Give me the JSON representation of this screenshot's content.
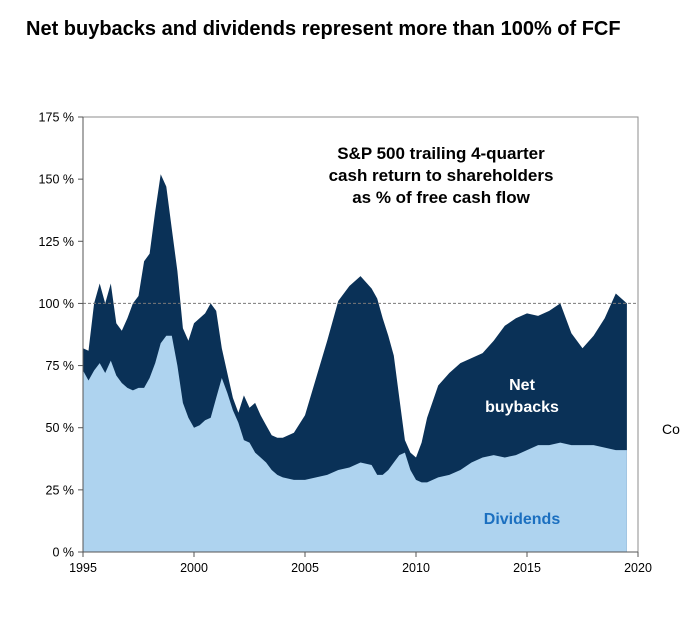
{
  "page_title": "Net buybacks and dividends represent more than 100% of FCF",
  "side_text": "Co",
  "chart_data": {
    "type": "area",
    "title": "S&P 500 trailing 4-quarter cash return to shareholders as % of free cash flow",
    "title_lines": [
      "S&P 500 trailing 4-quarter",
      "cash return to shareholders",
      "as % of free cash flow"
    ],
    "xlim": [
      1995,
      2020
    ],
    "ylim": [
      0,
      175
    ],
    "x_ticks": [
      1995,
      2000,
      2005,
      2010,
      2015,
      2020
    ],
    "y_ticks": [
      0,
      25,
      50,
      75,
      100,
      125,
      150,
      175
    ],
    "y_tick_labels": [
      "0 %",
      "25 %",
      "50 %",
      "75 %",
      "100 %",
      "125 %",
      "150 %",
      "175 %"
    ],
    "reference_line": 100,
    "colors": {
      "dividends": "#aed3ef",
      "total": "#0a3157",
      "reference": "#7a7a7a",
      "dividends_label": "#1b6fc0"
    },
    "stacking": "series 'Net buybacks' is the total cash return; dividends shown beneath it",
    "series": [
      {
        "name": "Dividends",
        "label": "Dividends",
        "points": [
          [
            1995,
            73
          ],
          [
            1995.25,
            69
          ],
          [
            1995.5,
            73
          ],
          [
            1995.75,
            76
          ],
          [
            1996,
            72
          ],
          [
            1996.25,
            77
          ],
          [
            1996.5,
            71
          ],
          [
            1996.75,
            68
          ],
          [
            1997,
            66
          ],
          [
            1997.25,
            65
          ],
          [
            1997.5,
            66
          ],
          [
            1997.75,
            66
          ],
          [
            1998,
            70
          ],
          [
            1998.25,
            76
          ],
          [
            1998.5,
            84
          ],
          [
            1998.75,
            87
          ],
          [
            1999,
            87
          ],
          [
            1999.25,
            75
          ],
          [
            1999.5,
            60
          ],
          [
            1999.75,
            54
          ],
          [
            2000,
            50
          ],
          [
            2000.25,
            51
          ],
          [
            2000.5,
            53
          ],
          [
            2000.75,
            54
          ],
          [
            2001,
            62
          ],
          [
            2001.25,
            70
          ],
          [
            2001.5,
            64
          ],
          [
            2001.75,
            57
          ],
          [
            2002,
            52
          ],
          [
            2002.25,
            45
          ],
          [
            2002.5,
            44
          ],
          [
            2002.75,
            40
          ],
          [
            2003,
            38
          ],
          [
            2003.25,
            36
          ],
          [
            2003.5,
            33
          ],
          [
            2003.75,
            31
          ],
          [
            2004,
            30
          ],
          [
            2004.5,
            29
          ],
          [
            2005,
            29
          ],
          [
            2005.5,
            30
          ],
          [
            2006,
            31
          ],
          [
            2006.5,
            33
          ],
          [
            2007,
            34
          ],
          [
            2007.5,
            36
          ],
          [
            2008,
            35
          ],
          [
            2008.25,
            31
          ],
          [
            2008.5,
            31
          ],
          [
            2008.75,
            33
          ],
          [
            2009,
            36
          ],
          [
            2009.25,
            39
          ],
          [
            2009.5,
            40
          ],
          [
            2009.75,
            33
          ],
          [
            2010,
            29
          ],
          [
            2010.25,
            28
          ],
          [
            2010.5,
            28
          ],
          [
            2011,
            30
          ],
          [
            2011.5,
            31
          ],
          [
            2012,
            33
          ],
          [
            2012.5,
            36
          ],
          [
            2013,
            38
          ],
          [
            2013.5,
            39
          ],
          [
            2014,
            38
          ],
          [
            2014.5,
            39
          ],
          [
            2015,
            41
          ],
          [
            2015.5,
            43
          ],
          [
            2016,
            43
          ],
          [
            2016.5,
            44
          ],
          [
            2017,
            43
          ],
          [
            2017.5,
            43
          ],
          [
            2018,
            43
          ],
          [
            2018.5,
            42
          ],
          [
            2019,
            41
          ],
          [
            2019.5,
            41
          ]
        ]
      },
      {
        "name": "Net buybacks",
        "label": "Net buybacks",
        "label_lines": [
          "Net",
          "buybacks"
        ],
        "points": [
          [
            1995,
            82
          ],
          [
            1995.25,
            81
          ],
          [
            1995.5,
            100
          ],
          [
            1995.75,
            108
          ],
          [
            1996,
            100
          ],
          [
            1996.25,
            108
          ],
          [
            1996.5,
            92
          ],
          [
            1996.75,
            89
          ],
          [
            1997,
            94
          ],
          [
            1997.25,
            100
          ],
          [
            1997.5,
            103
          ],
          [
            1997.75,
            117
          ],
          [
            1998,
            120
          ],
          [
            1998.25,
            137
          ],
          [
            1998.5,
            152
          ],
          [
            1998.75,
            147
          ],
          [
            1999,
            130
          ],
          [
            1999.25,
            113
          ],
          [
            1999.5,
            90
          ],
          [
            1999.75,
            85
          ],
          [
            2000,
            92
          ],
          [
            2000.25,
            94
          ],
          [
            2000.5,
            96
          ],
          [
            2000.75,
            100
          ],
          [
            2001,
            97
          ],
          [
            2001.25,
            82
          ],
          [
            2001.5,
            72
          ],
          [
            2001.75,
            62
          ],
          [
            2002,
            56
          ],
          [
            2002.25,
            63
          ],
          [
            2002.5,
            58
          ],
          [
            2002.75,
            60
          ],
          [
            2003,
            55
          ],
          [
            2003.25,
            51
          ],
          [
            2003.5,
            47
          ],
          [
            2003.75,
            46
          ],
          [
            2004,
            46
          ],
          [
            2004.5,
            48
          ],
          [
            2005,
            55
          ],
          [
            2005.5,
            70
          ],
          [
            2006,
            85
          ],
          [
            2006.5,
            101
          ],
          [
            2007,
            107
          ],
          [
            2007.5,
            111
          ],
          [
            2008,
            106
          ],
          [
            2008.25,
            102
          ],
          [
            2008.5,
            94
          ],
          [
            2008.75,
            87
          ],
          [
            2009,
            79
          ],
          [
            2009.25,
            62
          ],
          [
            2009.5,
            45
          ],
          [
            2009.75,
            40
          ],
          [
            2010,
            38
          ],
          [
            2010.25,
            44
          ],
          [
            2010.5,
            54
          ],
          [
            2011,
            67
          ],
          [
            2011.5,
            72
          ],
          [
            2012,
            76
          ],
          [
            2012.5,
            78
          ],
          [
            2013,
            80
          ],
          [
            2013.5,
            85
          ],
          [
            2014,
            91
          ],
          [
            2014.5,
            94
          ],
          [
            2015,
            96
          ],
          [
            2015.5,
            95
          ],
          [
            2016,
            97
          ],
          [
            2016.5,
            100
          ],
          [
            2017,
            88
          ],
          [
            2017.5,
            82
          ],
          [
            2018,
            87
          ],
          [
            2018.5,
            94
          ],
          [
            2019,
            104
          ],
          [
            2019.5,
            100
          ]
        ]
      }
    ]
  }
}
